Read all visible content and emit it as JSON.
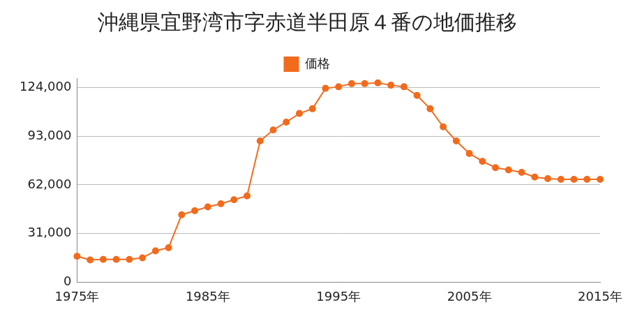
{
  "chart_data": {
    "type": "line",
    "title": "沖縄県宜野湾市字赤道半田原４番の地価推移",
    "categories": [
      "1975年",
      null,
      null,
      null,
      null,
      null,
      null,
      null,
      null,
      null,
      "1985年",
      null,
      null,
      null,
      null,
      null,
      null,
      null,
      null,
      null,
      "1995年",
      null,
      null,
      null,
      null,
      null,
      null,
      null,
      null,
      null,
      "2005年",
      null,
      null,
      null,
      null,
      null,
      null,
      null,
      null,
      null,
      "2015年"
    ],
    "series": [
      {
        "name": "価格",
        "color": "#f26b1d",
        "marker": "circle",
        "values": [
          16500,
          14200,
          14500,
          14500,
          14500,
          15500,
          20000,
          22000,
          43000,
          45500,
          48000,
          50000,
          52500,
          55000,
          90000,
          97000,
          102000,
          107500,
          110500,
          123500,
          124500,
          126500,
          126500,
          127000,
          125500,
          124500,
          119000,
          110500,
          99000,
          90000,
          82000,
          77000,
          73000,
          71500,
          70000,
          67000,
          66000,
          65500,
          65500,
          65500,
          65500
        ]
      }
    ],
    "ylim": [
      0,
      130000
    ],
    "yticks": [
      0,
      {
        "value": 31000,
        "label": "31,000"
      },
      {
        "value": 62000,
        "label": "62,000"
      },
      {
        "value": 93000,
        "label": "93,000"
      },
      {
        "value": 124000,
        "label": "124,000"
      }
    ],
    "grid": true,
    "legend": "top"
  }
}
